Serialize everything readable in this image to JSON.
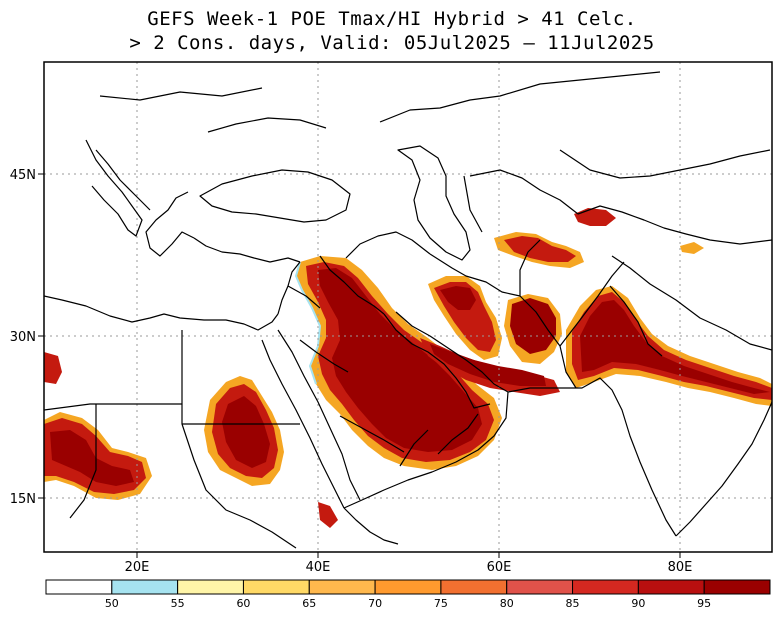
{
  "title": {
    "line1": "GEFS Week-1 POE Tmax/HI Hybrid > 41 Celc.",
    "line2": "> 2 Cons. days, Valid: 05Jul2025 – 11Jul2025"
  },
  "axes": {
    "lon_ticks": [
      "20E",
      "40E",
      "60E",
      "80E"
    ],
    "lat_ticks": [
      "45N",
      "30N",
      "15N"
    ]
  },
  "colorbar": {
    "labels": [
      "50",
      "55",
      "60",
      "65",
      "70",
      "75",
      "80",
      "85",
      "90",
      "95"
    ],
    "colors": [
      "#ffffff",
      "#a6e3f0",
      "#fff5a8",
      "#ffd966",
      "#ffb84d",
      "#ff9a2e",
      "#f27030",
      "#e0524a",
      "#d42820",
      "#b80f0f",
      "#9a0000"
    ]
  },
  "shading_colors": {
    "core": "#9a0000",
    "high": "#c41a0f",
    "mid": "#e85a1a",
    "edge": "#f5a623",
    "fringe": "#a6e3f0"
  },
  "map_style": {
    "background": "#ffffff",
    "borders": "#000000",
    "grid": "#9a9a9a"
  }
}
